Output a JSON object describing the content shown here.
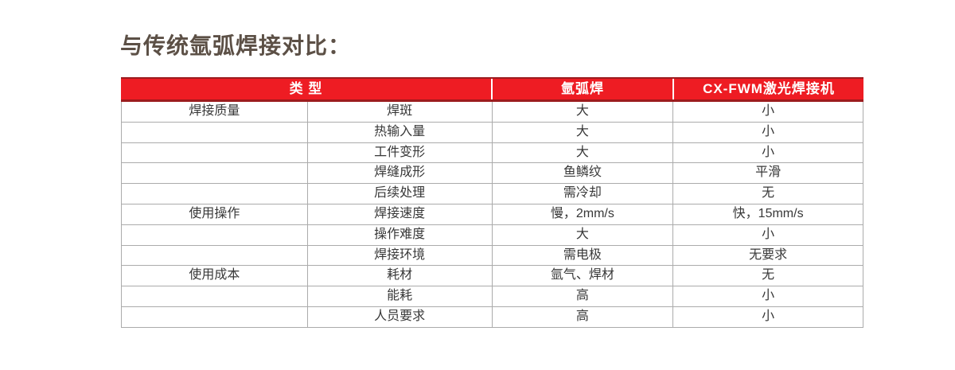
{
  "page": {
    "title": "与传统氩弧焊接对比："
  },
  "table": {
    "header": {
      "type_label": "类 型",
      "col_argon": "氩弧焊",
      "col_laser": "CX-FWM激光焊接机"
    },
    "rows": [
      {
        "category": "焊接质量",
        "item": "焊斑",
        "argon": "大",
        "laser": "小"
      },
      {
        "category": "",
        "item": "热输入量",
        "argon": "大",
        "laser": "小"
      },
      {
        "category": "",
        "item": "工件变形",
        "argon": "大",
        "laser": "小"
      },
      {
        "category": "",
        "item": "焊缝成形",
        "argon": "鱼鳞纹",
        "laser": "平滑"
      },
      {
        "category": "",
        "item": "后续处理",
        "argon": "需冷却",
        "laser": "无"
      },
      {
        "category": "使用操作",
        "item": "焊接速度",
        "argon": "慢，2mm/s",
        "laser": "快，15mm/s"
      },
      {
        "category": "",
        "item": "操作难度",
        "argon": "大",
        "laser": "小"
      },
      {
        "category": "",
        "item": "焊接环境",
        "argon": "需电极",
        "laser": "无要求"
      },
      {
        "category": "使用成本",
        "item": "耗材",
        "argon": "氩气、焊材",
        "laser": "无"
      },
      {
        "category": "",
        "item": "能耗",
        "argon": "高",
        "laser": "小"
      },
      {
        "category": "",
        "item": "人员要求",
        "argon": "高",
        "laser": "小"
      }
    ],
    "colors": {
      "header_bg": "#EE1C23",
      "header_accent": "#9C1B1E",
      "header_text": "#FFFFFF",
      "body_text": "#383838",
      "grid_line": "#ABABAB",
      "title_text": "#5C5046"
    }
  }
}
